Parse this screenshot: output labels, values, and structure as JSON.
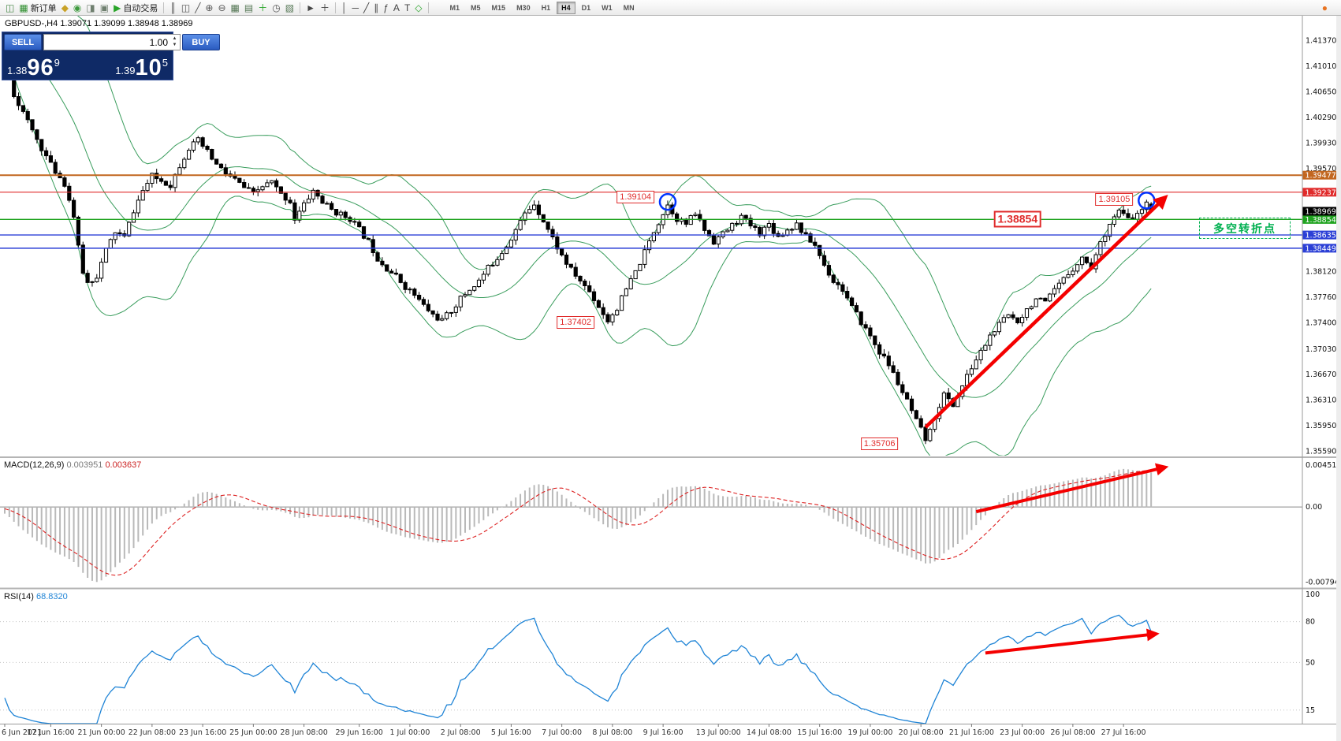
{
  "toolbar": {
    "items": [
      {
        "name": "new-chart-icon",
        "glyph": "◫",
        "color": "#4a8a4a"
      },
      {
        "name": "new-order-button",
        "glyph": "▦",
        "color": "#2f8f2f",
        "label": "新订单"
      },
      {
        "name": "metaeditor-icon",
        "glyph": "◆",
        "color": "#c9a227"
      },
      {
        "name": "market-watch-icon",
        "glyph": "◉",
        "color": "#3f9a3f"
      },
      {
        "name": "data-window-icon",
        "glyph": "◨",
        "color": "#6f7f6f"
      },
      {
        "name": "navigator-icon",
        "glyph": "▣",
        "color": "#6f7f6f"
      },
      {
        "name": "autotrade-button",
        "glyph": "▶",
        "color": "#28a428",
        "label": "自动交易"
      },
      {
        "sep": true
      },
      {
        "name": "bar-chart-type-icon",
        "glyph": "║",
        "color": "#555555"
      },
      {
        "name": "candlestick-type-icon",
        "glyph": "◫",
        "color": "#555555"
      },
      {
        "name": "line-chart-type-icon",
        "glyph": "╱",
        "color": "#555555"
      },
      {
        "name": "zoom-in-icon",
        "glyph": "⊕",
        "color": "#555555"
      },
      {
        "name": "zoom-out-icon",
        "glyph": "⊖",
        "color": "#555555"
      },
      {
        "name": "tile-windows-icon",
        "glyph": "▦",
        "color": "#557755"
      },
      {
        "name": "cascade-windows-icon",
        "glyph": "▤",
        "color": "#557755"
      },
      {
        "name": "indicators-icon",
        "glyph": "＋",
        "color": "#28a428"
      },
      {
        "name": "periods-icon",
        "glyph": "◷",
        "color": "#555555"
      },
      {
        "name": "templates-icon",
        "glyph": "▧",
        "color": "#557755"
      },
      {
        "sep": true
      },
      {
        "name": "cursor-icon",
        "glyph": "►",
        "color": "#444444"
      },
      {
        "name": "crosshair-icon",
        "glyph": "＋",
        "color": "#444444"
      },
      {
        "sep": true
      },
      {
        "name": "vertical-line-icon",
        "glyph": "│",
        "color": "#444444"
      },
      {
        "name": "horizontal-line-icon",
        "glyph": "─",
        "color": "#444444"
      },
      {
        "name": "trendline-icon",
        "glyph": "╱",
        "color": "#444444"
      },
      {
        "name": "channel-icon",
        "glyph": "∥",
        "color": "#444444"
      },
      {
        "name": "fibonacci-icon",
        "glyph": "ƒ",
        "color": "#444444"
      },
      {
        "name": "text-icon",
        "glyph": "A",
        "color": "#444444"
      },
      {
        "name": "label-icon",
        "glyph": "T",
        "color": "#444444"
      },
      {
        "name": "shapes-icon",
        "glyph": "◇",
        "color": "#28a428"
      },
      {
        "sep": true
      }
    ],
    "timeframes": [
      "M1",
      "M5",
      "M15",
      "M30",
      "H1",
      "H4",
      "D1",
      "W1",
      "MN"
    ],
    "active_timeframe": "H4",
    "right_items": [
      {
        "name": "community-icon",
        "glyph": "●",
        "color": "#e87422"
      }
    ]
  },
  "chart_header": {
    "symbol_period": "GBPUSD-,H4",
    "ohlc": "1.39071 1.39099 1.38948 1.38969"
  },
  "trade_panel": {
    "sell_label": "SELL",
    "buy_label": "BUY",
    "volume": "1.00",
    "spinner_up": "▲",
    "spinner_down": "▼",
    "sell_price": {
      "prefix": "1.38",
      "big": "96",
      "sup": "9"
    },
    "buy_price": {
      "prefix": "1.39",
      "big": "10",
      "sup": "5"
    }
  },
  "macd_panel": {
    "name": "MACD(12,26,9)",
    "value1": "0.003951",
    "value2": "0.003637",
    "range": [
      -0.0085,
      0.0051
    ],
    "axis_ticks": [
      {
        "v": 0.004517,
        "t": "0.004517"
      },
      {
        "v": 0,
        "t": "0.00"
      },
      {
        "v": -0.00794,
        "t": "-0.00794"
      }
    ]
  },
  "rsi_panel": {
    "name": "RSI(14)",
    "value": "68.8320",
    "range": [
      5,
      103
    ],
    "levels": [
      80,
      50,
      15
    ],
    "axis_ticks": [
      {
        "v": 100,
        "t": "100"
      },
      {
        "v": 80,
        "t": "80"
      },
      {
        "v": 50,
        "t": "50"
      },
      {
        "v": 15,
        "t": "15"
      }
    ]
  },
  "annotations": {
    "turn_box_text": "多空转折点",
    "color": "#f40000",
    "circle_color": "#0033ff",
    "price_flags": [
      {
        "text": "1.39104",
        "i": 137,
        "price": 1.3917,
        "large": false
      },
      {
        "text": "1.38854",
        "i": 220,
        "price": 1.3886,
        "large": true
      },
      {
        "text": "1.39105",
        "i": 241,
        "price": 1.3913,
        "large": false
      },
      {
        "text": "1.37402",
        "i": 124,
        "price": 1.3741,
        "large": false
      },
      {
        "text": "1.35706",
        "i": 190,
        "price": 1.357,
        "large": false
      }
    ],
    "circles": [
      {
        "i": 144,
        "price": 1.391
      },
      {
        "i": 248,
        "price": 1.3912
      }
    ],
    "arrows": {
      "main": {
        "from_i": 200,
        "from_price": 1.3593,
        "to_i": 252,
        "to_price": 1.3916
      },
      "macd": {
        "from_i": 211,
        "from_val": -0.0005,
        "to_i": 252,
        "to_val": 0.0042
      },
      "rsi": {
        "from_i": 213,
        "from_val": 57,
        "to_i": 250,
        "to_val": 71
      }
    }
  },
  "chart_data": {
    "type": "candlestick",
    "symbol": "GBPUSD-",
    "timeframe": "H4",
    "current_ohlc": {
      "open": 1.39071,
      "high": 1.39099,
      "low": 1.38948,
      "close": 1.38969
    },
    "visible_candles": 250,
    "seed": 11,
    "noise": 0.0009,
    "y_range": [
      1.3553,
      1.4172
    ],
    "y_ticks": [
      1.4137,
      1.4101,
      1.4065,
      1.4029,
      1.3993,
      1.3957,
      1.3812,
      1.3776,
      1.374,
      1.3703,
      1.3667,
      1.3631,
      1.3595,
      1.3559
    ],
    "levels": [
      {
        "price": 1.39477,
        "color": "#c2661f",
        "width": 2
      },
      {
        "price": 1.39237,
        "color": "#e02b2b",
        "width": 1.2
      },
      {
        "price": 1.38854,
        "color": "#1fa31f",
        "width": 1.4
      },
      {
        "price": 1.38635,
        "color": "#2b3fd6",
        "width": 1.4
      },
      {
        "price": 1.38449,
        "color": "#2b3fd6",
        "width": 1.4
      }
    ],
    "current_price_badge": {
      "price": 1.38969,
      "bg": "#000000"
    },
    "bollinger": {
      "period": 20,
      "deviation": 2,
      "color": "#3a9d5d"
    },
    "candle_colors": {
      "up_fill": "#ffffff",
      "down_fill": "#000000",
      "outline": "#000000"
    },
    "price_path": [
      [
        -40,
        1.4138
      ],
      [
        -30,
        1.4165
      ],
      [
        -20,
        1.415
      ],
      [
        -10,
        1.4162
      ],
      [
        -2,
        1.4128
      ],
      [
        0,
        1.4115
      ],
      [
        2,
        1.4062
      ],
      [
        4,
        1.4035
      ],
      [
        7,
        1.3998
      ],
      [
        10,
        1.3962
      ],
      [
        13,
        1.3936
      ],
      [
        15,
        1.389
      ],
      [
        16,
        1.3845
      ],
      [
        17,
        1.3812
      ],
      [
        18,
        1.3796
      ],
      [
        20,
        1.3806
      ],
      [
        22,
        1.3842
      ],
      [
        24,
        1.3868
      ],
      [
        26,
        1.386
      ],
      [
        28,
        1.3898
      ],
      [
        30,
        1.3926
      ],
      [
        32,
        1.3946
      ],
      [
        34,
        1.394
      ],
      [
        36,
        1.3934
      ],
      [
        38,
        1.3962
      ],
      [
        40,
        1.3986
      ],
      [
        42,
        1.3996
      ],
      [
        44,
        1.398
      ],
      [
        46,
        1.3962
      ],
      [
        48,
        1.395
      ],
      [
        50,
        1.3941
      ],
      [
        52,
        1.393
      ],
      [
        54,
        1.3921
      ],
      [
        56,
        1.3932
      ],
      [
        58,
        1.3938
      ],
      [
        60,
        1.392
      ],
      [
        62,
        1.3911
      ],
      [
        63,
        1.3886
      ],
      [
        65,
        1.3906
      ],
      [
        67,
        1.3926
      ],
      [
        69,
        1.391
      ],
      [
        71,
        1.3899
      ],
      [
        73,
        1.3892
      ],
      [
        75,
        1.3887
      ],
      [
        77,
        1.3871
      ],
      [
        79,
        1.3854
      ],
      [
        81,
        1.3831
      ],
      [
        83,
        1.3817
      ],
      [
        85,
        1.3805
      ],
      [
        87,
        1.3791
      ],
      [
        89,
        1.3779
      ],
      [
        91,
        1.3764
      ],
      [
        93,
        1.3751
      ],
      [
        95,
        1.3743
      ],
      [
        97,
        1.3757
      ],
      [
        99,
        1.3774
      ],
      [
        101,
        1.3787
      ],
      [
        103,
        1.3799
      ],
      [
        105,
        1.3817
      ],
      [
        107,
        1.3832
      ],
      [
        109,
        1.3849
      ],
      [
        111,
        1.3871
      ],
      [
        113,
        1.3893
      ],
      [
        115,
        1.3908
      ],
      [
        117,
        1.3884
      ],
      [
        119,
        1.3859
      ],
      [
        121,
        1.3834
      ],
      [
        123,
        1.3814
      ],
      [
        125,
        1.3799
      ],
      [
        127,
        1.3784
      ],
      [
        129,
        1.3763
      ],
      [
        131,
        1.3743
      ],
      [
        133,
        1.3761
      ],
      [
        135,
        1.3787
      ],
      [
        137,
        1.3811
      ],
      [
        139,
        1.3839
      ],
      [
        141,
        1.3869
      ],
      [
        143,
        1.3894
      ],
      [
        144,
        1.3906
      ],
      [
        146,
        1.3887
      ],
      [
        148,
        1.3879
      ],
      [
        150,
        1.3894
      ],
      [
        152,
        1.3871
      ],
      [
        154,
        1.3855
      ],
      [
        156,
        1.3865
      ],
      [
        158,
        1.3877
      ],
      [
        160,
        1.3889
      ],
      [
        162,
        1.3877
      ],
      [
        164,
        1.3867
      ],
      [
        166,
        1.3879
      ],
      [
        168,
        1.3861
      ],
      [
        170,
        1.3871
      ],
      [
        172,
        1.3879
      ],
      [
        174,
        1.3861
      ],
      [
        176,
        1.3849
      ],
      [
        178,
        1.3821
      ],
      [
        180,
        1.3799
      ],
      [
        182,
        1.3787
      ],
      [
        184,
        1.3761
      ],
      [
        186,
        1.3741
      ],
      [
        188,
        1.3721
      ],
      [
        190,
        1.3699
      ],
      [
        192,
        1.3681
      ],
      [
        194,
        1.3655
      ],
      [
        196,
        1.3629
      ],
      [
        198,
        1.3601
      ],
      [
        200,
        1.3576
      ],
      [
        201,
        1.3586
      ],
      [
        202,
        1.3609
      ],
      [
        204,
        1.3639
      ],
      [
        206,
        1.3624
      ],
      [
        208,
        1.3651
      ],
      [
        210,
        1.3677
      ],
      [
        212,
        1.3699
      ],
      [
        214,
        1.3721
      ],
      [
        216,
        1.3737
      ],
      [
        218,
        1.3751
      ],
      [
        220,
        1.3743
      ],
      [
        222,
        1.3759
      ],
      [
        224,
        1.3774
      ],
      [
        226,
        1.3767
      ],
      [
        228,
        1.3785
      ],
      [
        230,
        1.3801
      ],
      [
        232,
        1.3817
      ],
      [
        234,
        1.3831
      ],
      [
        236,
        1.3819
      ],
      [
        238,
        1.3851
      ],
      [
        240,
        1.3881
      ],
      [
        242,
        1.3897
      ],
      [
        244,
        1.3885
      ],
      [
        246,
        1.3891
      ],
      [
        248,
        1.3906
      ],
      [
        249,
        1.3897
      ]
    ],
    "time_labels": [
      {
        "i": 0,
        "t": "6 Jun 2021"
      },
      {
        "i": 10,
        "t": "17 Jun 16:00"
      },
      {
        "i": 21,
        "t": "21 Jun 00:00"
      },
      {
        "i": 32,
        "t": "22 Jun 08:00"
      },
      {
        "i": 43,
        "t": "23 Jun 16:00"
      },
      {
        "i": 54,
        "t": "25 Jun 00:00"
      },
      {
        "i": 65,
        "t": "28 Jun 08:00"
      },
      {
        "i": 77,
        "t": "29 Jun 16:00"
      },
      {
        "i": 88,
        "t": "1 Jul 00:00"
      },
      {
        "i": 99,
        "t": "2 Jul 08:00"
      },
      {
        "i": 110,
        "t": "5 Jul 16:00"
      },
      {
        "i": 121,
        "t": "7 Jul 00:00"
      },
      {
        "i": 132,
        "t": "8 Jul 08:00"
      },
      {
        "i": 143,
        "t": "9 Jul 16:00"
      },
      {
        "i": 155,
        "t": "13 Jul 00:00"
      },
      {
        "i": 166,
        "t": "14 Jul 08:00"
      },
      {
        "i": 177,
        "t": "15 Jul 16:00"
      },
      {
        "i": 188,
        "t": "19 Jul 00:00"
      },
      {
        "i": 199,
        "t": "20 Jul 08:00"
      },
      {
        "i": 210,
        "t": "21 Jul 16:00"
      },
      {
        "i": 221,
        "t": "23 Jul 00:00"
      },
      {
        "i": 232,
        "t": "26 Jul 08:00"
      },
      {
        "i": 243,
        "t": "27 Jul 16:00"
      }
    ]
  }
}
